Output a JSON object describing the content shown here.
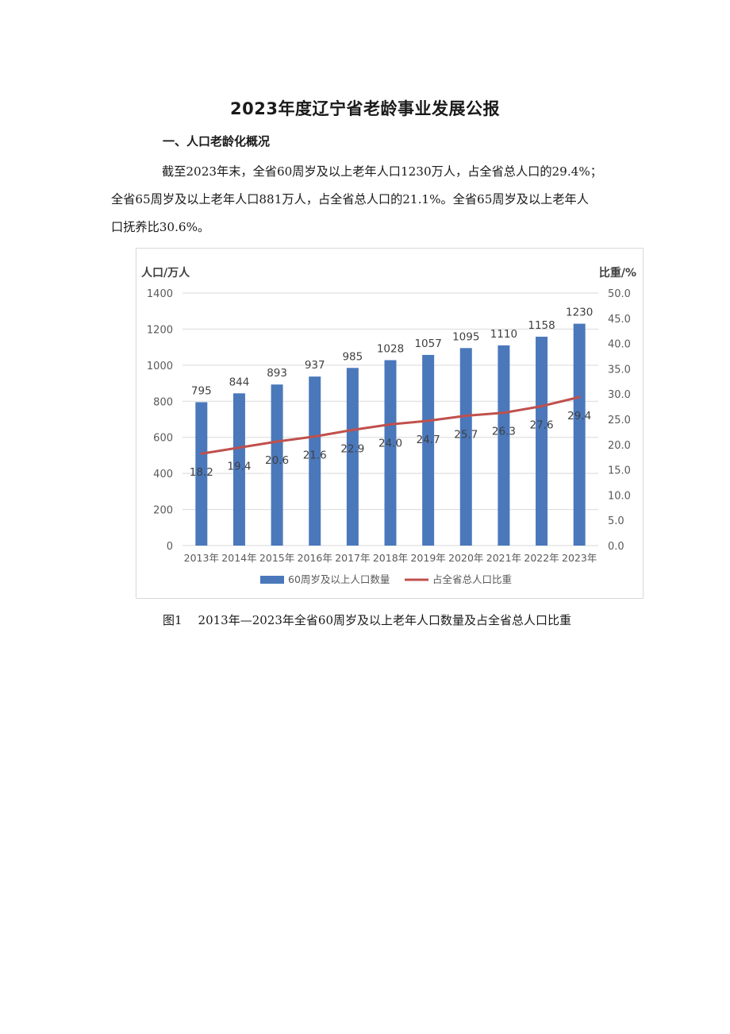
{
  "document": {
    "title": "2023年度辽宁省老龄事业发展公报",
    "section_heading": "一、人口老龄化概况",
    "paragraph_lines": [
      "截至2023年末，全省60周岁及以上老年人口1230万人，占全省总人口的29.4%；",
      "全省65周岁及以上老年人口881万人，占全省总人口的21.1%。全省65周岁及以上老年人",
      "口抚养比30.6%。"
    ],
    "figure_number": "图1",
    "figure_caption": "2013年—2023年全省60周岁及以上老年人口数量及占全省总人口比重"
  },
  "colors": {
    "bar": "#4a78bb",
    "line": "#c0504d",
    "axis_text": "#595959",
    "gridline": "#d9d9d9"
  },
  "chart_data": {
    "type": "bar",
    "categories": [
      "2013年",
      "2014年",
      "2015年",
      "2016年",
      "2017年",
      "2018年",
      "2019年",
      "2020年",
      "2021年",
      "2022年",
      "2023年"
    ],
    "series": [
      {
        "name": "60周岁及以上人口数量",
        "type": "bar",
        "axis": "left",
        "values": [
          795,
          844,
          893,
          937,
          985,
          1028,
          1057,
          1095,
          1110,
          1158,
          1230
        ]
      },
      {
        "name": "占全省总人口比重",
        "type": "line",
        "axis": "right",
        "values": [
          18.2,
          19.4,
          20.6,
          21.6,
          22.9,
          24.0,
          24.7,
          25.7,
          26.3,
          27.6,
          29.4
        ]
      }
    ],
    "left_axis_label": "人口/万人",
    "right_axis_label": "比重/%",
    "left_ylim": [
      0,
      1400
    ],
    "left_ticks": [
      "0",
      "200",
      "400",
      "600",
      "800",
      "1000",
      "1200",
      "1400"
    ],
    "right_ylim": [
      0,
      50
    ],
    "right_ticks": [
      "0.0",
      "5.0",
      "10.0",
      "15.0",
      "20.0",
      "25.0",
      "30.0",
      "35.0",
      "40.0",
      "45.0",
      "50.0"
    ],
    "grid": true,
    "legend_position": "bottom"
  }
}
